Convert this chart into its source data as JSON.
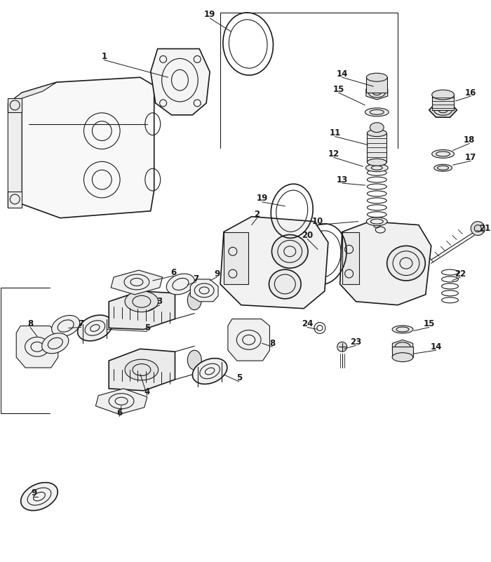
{
  "bg_color": "#ffffff",
  "line_color": "#1a1a1a",
  "fig_width": 7.0,
  "fig_height": 8.01,
  "dpi": 100
}
